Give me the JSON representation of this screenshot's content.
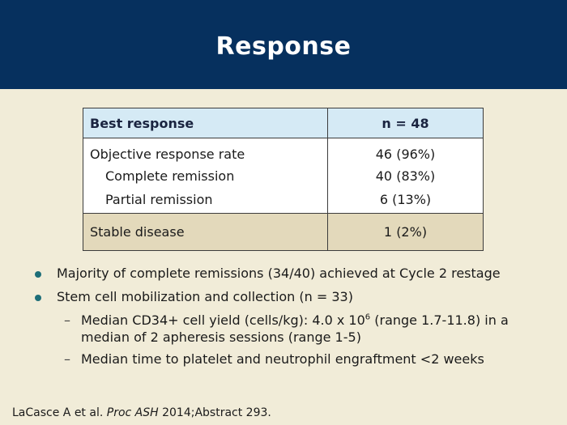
{
  "slide": {
    "title": "Response"
  },
  "table": {
    "header": {
      "col1": "Best response",
      "col2": "n = 48"
    },
    "rows": [
      {
        "label": "Objective response rate",
        "value": "46 (96%)"
      },
      {
        "label": "Complete remission",
        "value": "40 (83%)"
      },
      {
        "label": "Partial remission",
        "value": "6 (13%)"
      }
    ],
    "stable": {
      "label": "Stable disease",
      "value": "1 (2%)"
    }
  },
  "bullets": {
    "b1": "Majority of complete remissions (34/40) achieved at Cycle 2 restage",
    "b2": "Stem cell mobilization and collection (n = 33)",
    "sub1_pre": "Median CD34+ cell yield (cells/kg): 4.0 x 10",
    "sub1_sup": "6",
    "sub1_post": " (range 1.7-11.8) in a median of 2 apheresis sessions (range 1-5)",
    "sub2": "Median time to platelet and neutrophil engraftment <2 weeks",
    "dash": "–"
  },
  "footer": {
    "authors": "LaCasce A et al. ",
    "journal": "Proc ASH",
    "rest": " 2014;Abstract 293."
  },
  "colors": {
    "header_bg": "#06305e",
    "page_bg": "#f1ecd8",
    "table_header_bg": "#d5eaf5",
    "stable_row_bg": "#e3d9bb",
    "bullet_dot": "#1d6e78"
  }
}
